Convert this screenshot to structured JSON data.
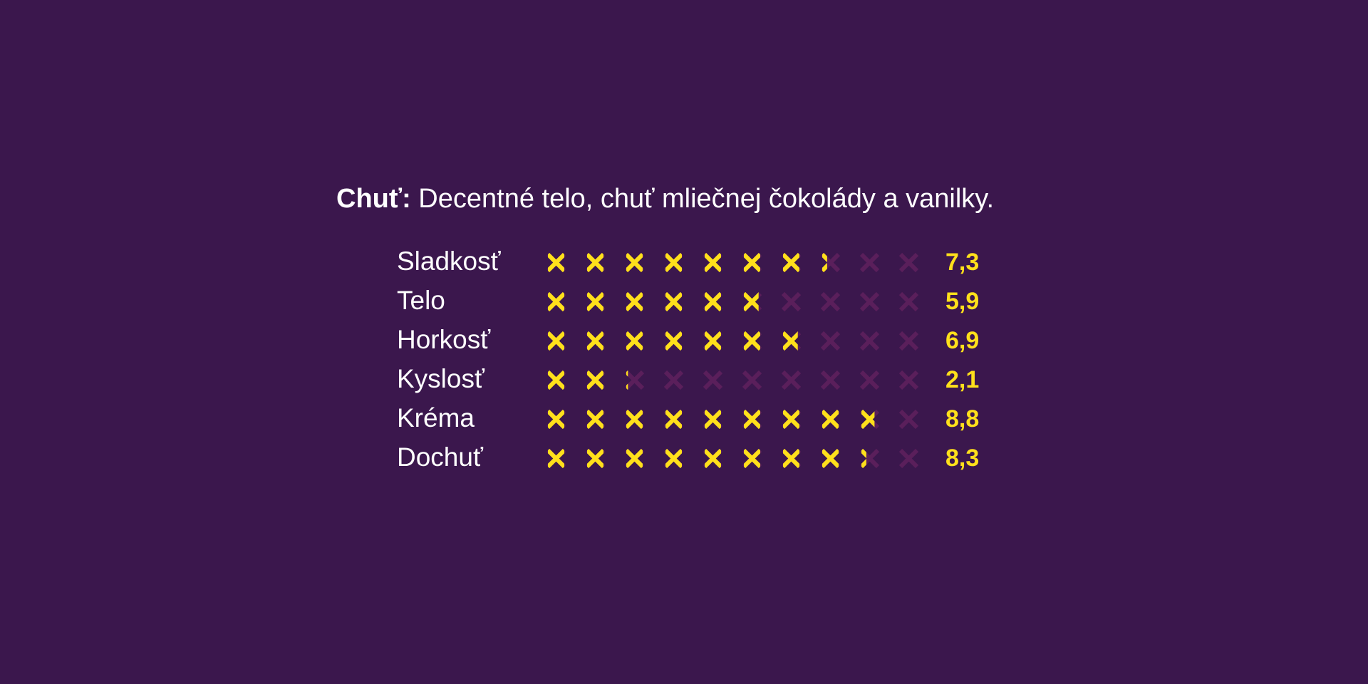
{
  "title": {
    "lead": "Chuť:",
    "text": " Decentné telo, chuť mliečnej čokolády a vanilky."
  },
  "scale_max": 10,
  "colors": {
    "background": "#3b174d",
    "text": "#ffffff",
    "accent": "#ffe01b",
    "inactive": "#5a1f5b"
  },
  "icon": "x-mark-icon",
  "ratings": [
    {
      "label": "Sladkosť",
      "value": 7.3,
      "value_text": "7,3"
    },
    {
      "label": "Telo",
      "value": 5.9,
      "value_text": "5,9"
    },
    {
      "label": "Horkosť",
      "value": 6.9,
      "value_text": "6,9"
    },
    {
      "label": "Kyslosť",
      "value": 2.1,
      "value_text": "2,1"
    },
    {
      "label": "Kréma",
      "value": 8.8,
      "value_text": "8,8"
    },
    {
      "label": "Dochuť",
      "value": 8.3,
      "value_text": "8,3"
    }
  ]
}
